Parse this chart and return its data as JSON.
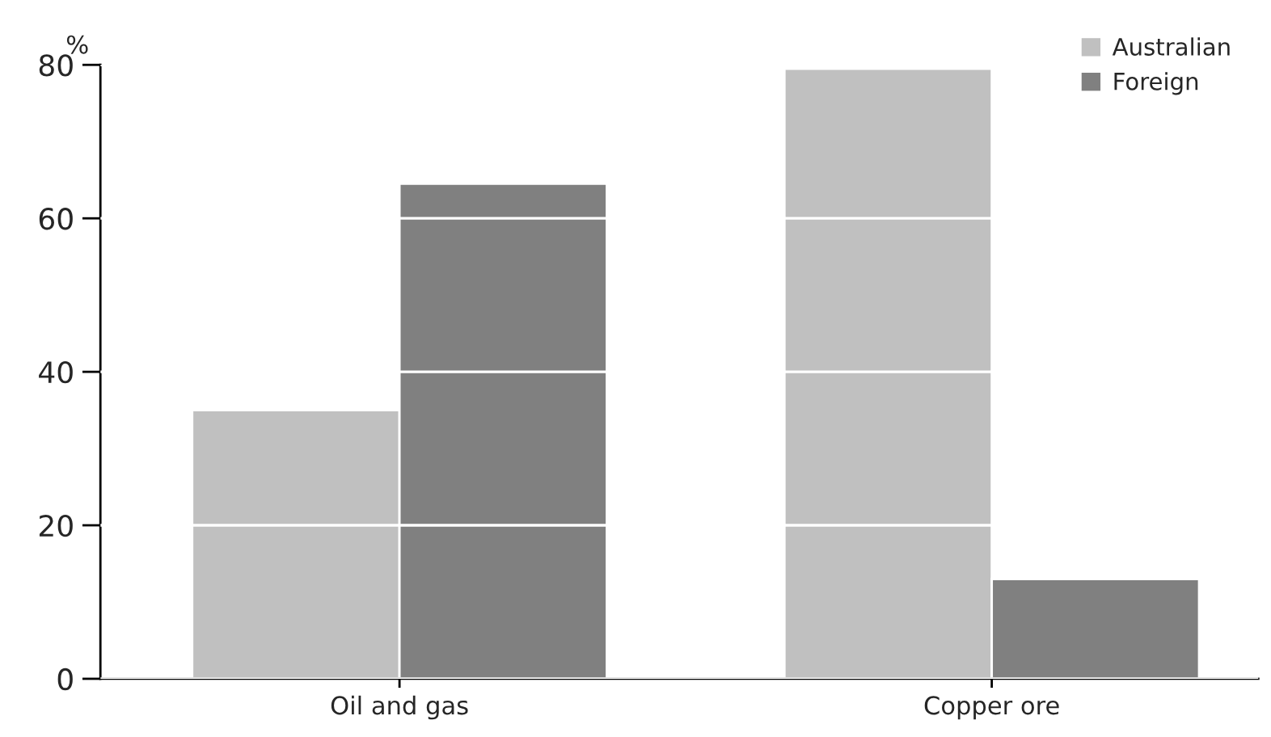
{
  "chart_data": {
    "type": "bar",
    "ylabel": "%",
    "categories": [
      "Oil and gas",
      "Copper ore"
    ],
    "series": [
      {
        "name": "Australian",
        "color": "#c0c0c0",
        "values": [
          35,
          79.5
        ]
      },
      {
        "name": "Foreign",
        "color": "#808080",
        "values": [
          64.5,
          13
        ]
      }
    ],
    "ylim": [
      0,
      80
    ],
    "yticks": [
      0,
      20,
      40,
      60,
      80
    ],
    "grid": "y",
    "legend": "top right"
  }
}
